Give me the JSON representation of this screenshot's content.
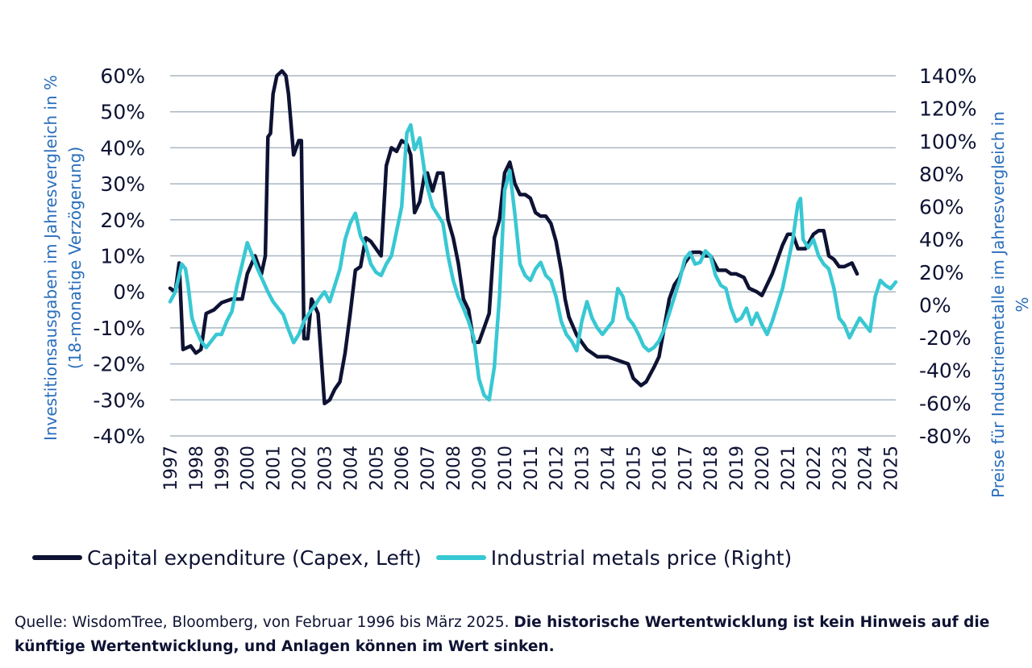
{
  "colors": {
    "capex": "#0e1233",
    "metals": "#38c8d3",
    "grid": "#a9b7c2",
    "axis_title": "#2a6ebb"
  },
  "chart_data": {
    "type": "line",
    "y_left": {
      "label_line1": "Investitionsausgaben im Jahresvergleich in %",
      "label_line2": "(18-monatige Verzögerung)",
      "min": -40,
      "max": 60,
      "step": 10,
      "ticks": [
        "60%",
        "50%",
        "40%",
        "30%",
        "20%",
        "10%",
        "0%",
        "-10%",
        "-20%",
        "-30%",
        "-40%"
      ]
    },
    "y_right": {
      "label_line1": "Preise für Industriemetalle im Jahresvergleich in",
      "label_line2": "%",
      "min": -80,
      "max": 140,
      "step": 20,
      "ticks": [
        "140%",
        "120%",
        "100%",
        "80%",
        "60%",
        "40%",
        "20%",
        "0%",
        "-20%",
        "-40%",
        "-60%",
        "-80%"
      ]
    },
    "x_range": [
      1997,
      2025.2
    ],
    "x_ticks": [
      "1997",
      "1998",
      "1999",
      "2000",
      "2001",
      "2002",
      "2003",
      "2004",
      "2005",
      "2006",
      "2007",
      "2008",
      "2009",
      "2010",
      "2011",
      "2012",
      "2013",
      "2014",
      "2015",
      "2016",
      "2017",
      "2018",
      "2019",
      "2020",
      "2021",
      "2022",
      "2023",
      "2024",
      "2025"
    ],
    "series": [
      {
        "name": "Capital expenditure (Capex, Left)",
        "axis": "left",
        "points": [
          [
            1997.0,
            1
          ],
          [
            1997.2,
            0
          ],
          [
            1997.35,
            8
          ],
          [
            1997.5,
            -16
          ],
          [
            1997.8,
            -15
          ],
          [
            1998.0,
            -17
          ],
          [
            1998.2,
            -16
          ],
          [
            1998.4,
            -6
          ],
          [
            1998.7,
            -5
          ],
          [
            1999.0,
            -3
          ],
          [
            1999.4,
            -2
          ],
          [
            1999.8,
            -2
          ],
          [
            2000.0,
            5
          ],
          [
            2000.3,
            10
          ],
          [
            2000.55,
            5
          ],
          [
            2000.7,
            10
          ],
          [
            2000.8,
            43
          ],
          [
            2000.9,
            44
          ],
          [
            2001.0,
            55
          ],
          [
            2001.15,
            60
          ],
          [
            2001.35,
            62
          ],
          [
            2001.5,
            60
          ],
          [
            2001.6,
            55
          ],
          [
            2001.8,
            38
          ],
          [
            2002.0,
            42
          ],
          [
            2002.1,
            42
          ],
          [
            2002.2,
            -13
          ],
          [
            2002.35,
            -13
          ],
          [
            2002.5,
            -2
          ],
          [
            2002.75,
            -6
          ],
          [
            2003.0,
            -31
          ],
          [
            2003.2,
            -30
          ],
          [
            2003.4,
            -27
          ],
          [
            2003.6,
            -25
          ],
          [
            2003.8,
            -17
          ],
          [
            2004.0,
            -6
          ],
          [
            2004.2,
            6
          ],
          [
            2004.4,
            7
          ],
          [
            2004.6,
            15
          ],
          [
            2004.8,
            14
          ],
          [
            2005.0,
            12
          ],
          [
            2005.2,
            10
          ],
          [
            2005.4,
            35
          ],
          [
            2005.6,
            40
          ],
          [
            2005.8,
            39
          ],
          [
            2006.0,
            42
          ],
          [
            2006.2,
            41
          ],
          [
            2006.35,
            38
          ],
          [
            2006.5,
            22
          ],
          [
            2006.7,
            25
          ],
          [
            2006.9,
            33
          ],
          [
            2007.0,
            33
          ],
          [
            2007.2,
            28
          ],
          [
            2007.4,
            33
          ],
          [
            2007.6,
            33
          ],
          [
            2007.8,
            20
          ],
          [
            2008.0,
            15
          ],
          [
            2008.2,
            8
          ],
          [
            2008.4,
            -2
          ],
          [
            2008.6,
            -5
          ],
          [
            2008.8,
            -14
          ],
          [
            2009.0,
            -14
          ],
          [
            2009.2,
            -10
          ],
          [
            2009.4,
            -6
          ],
          [
            2009.6,
            15
          ],
          [
            2009.8,
            20
          ],
          [
            2010.0,
            33
          ],
          [
            2010.2,
            36
          ],
          [
            2010.4,
            30
          ],
          [
            2010.6,
            27
          ],
          [
            2010.8,
            27
          ],
          [
            2011.0,
            26
          ],
          [
            2011.2,
            22
          ],
          [
            2011.4,
            21
          ],
          [
            2011.6,
            21
          ],
          [
            2011.8,
            19
          ],
          [
            2012.0,
            14
          ],
          [
            2012.2,
            6
          ],
          [
            2012.35,
            -2
          ],
          [
            2012.5,
            -7
          ],
          [
            2012.8,
            -12
          ],
          [
            2013.0,
            -14
          ],
          [
            2013.2,
            -16
          ],
          [
            2013.4,
            -17
          ],
          [
            2013.6,
            -18
          ],
          [
            2013.8,
            -18
          ],
          [
            2014.0,
            -18
          ],
          [
            2014.4,
            -19
          ],
          [
            2014.8,
            -20
          ],
          [
            2015.0,
            -24
          ],
          [
            2015.3,
            -26
          ],
          [
            2015.5,
            -25
          ],
          [
            2015.8,
            -21
          ],
          [
            2016.0,
            -18
          ],
          [
            2016.2,
            -10
          ],
          [
            2016.4,
            -2
          ],
          [
            2016.6,
            2
          ],
          [
            2016.8,
            4
          ],
          [
            2017.0,
            8
          ],
          [
            2017.3,
            11
          ],
          [
            2017.6,
            11
          ],
          [
            2017.8,
            10
          ],
          [
            2018.0,
            10
          ],
          [
            2018.3,
            6
          ],
          [
            2018.6,
            6
          ],
          [
            2018.8,
            5
          ],
          [
            2019.0,
            5
          ],
          [
            2019.3,
            4
          ],
          [
            2019.5,
            1
          ],
          [
            2019.8,
            0
          ],
          [
            2020.0,
            -1
          ],
          [
            2020.2,
            2
          ],
          [
            2020.4,
            5
          ],
          [
            2020.6,
            9
          ],
          [
            2020.8,
            13
          ],
          [
            2021.0,
            16
          ],
          [
            2021.2,
            16
          ],
          [
            2021.4,
            12
          ],
          [
            2021.7,
            12
          ],
          [
            2022.0,
            16
          ],
          [
            2022.2,
            17
          ],
          [
            2022.4,
            17
          ],
          [
            2022.6,
            10
          ],
          [
            2022.8,
            9
          ],
          [
            2023.0,
            7
          ],
          [
            2023.2,
            7
          ],
          [
            2023.5,
            8
          ],
          [
            2023.7,
            5
          ]
        ]
      },
      {
        "name": "Industrial metals price (Right)",
        "axis": "right",
        "points": [
          [
            1997.0,
            2
          ],
          [
            1997.2,
            8
          ],
          [
            1997.35,
            18
          ],
          [
            1997.45,
            25
          ],
          [
            1997.6,
            22
          ],
          [
            1997.7,
            12
          ],
          [
            1997.85,
            -8
          ],
          [
            1998.0,
            -15
          ],
          [
            1998.2,
            -22
          ],
          [
            1998.4,
            -26
          ],
          [
            1998.6,
            -22
          ],
          [
            1998.8,
            -18
          ],
          [
            1999.0,
            -18
          ],
          [
            1999.2,
            -10
          ],
          [
            1999.4,
            -4
          ],
          [
            1999.6,
            12
          ],
          [
            1999.8,
            25
          ],
          [
            2000.0,
            38
          ],
          [
            2000.2,
            30
          ],
          [
            2000.4,
            22
          ],
          [
            2000.6,
            15
          ],
          [
            2000.8,
            8
          ],
          [
            2001.0,
            2
          ],
          [
            2001.2,
            -2
          ],
          [
            2001.4,
            -6
          ],
          [
            2001.6,
            -15
          ],
          [
            2001.8,
            -23
          ],
          [
            2002.0,
            -18
          ],
          [
            2002.2,
            -10
          ],
          [
            2002.4,
            -5
          ],
          [
            2002.6,
            -1
          ],
          [
            2002.8,
            4
          ],
          [
            2003.0,
            8
          ],
          [
            2003.2,
            2
          ],
          [
            2003.4,
            12
          ],
          [
            2003.6,
            22
          ],
          [
            2003.8,
            40
          ],
          [
            2004.0,
            50
          ],
          [
            2004.2,
            56
          ],
          [
            2004.4,
            42
          ],
          [
            2004.6,
            36
          ],
          [
            2004.8,
            25
          ],
          [
            2005.0,
            20
          ],
          [
            2005.2,
            18
          ],
          [
            2005.4,
            25
          ],
          [
            2005.6,
            30
          ],
          [
            2005.8,
            45
          ],
          [
            2006.0,
            60
          ],
          [
            2006.2,
            105
          ],
          [
            2006.35,
            110
          ],
          [
            2006.5,
            95
          ],
          [
            2006.7,
            102
          ],
          [
            2006.9,
            80
          ],
          [
            2007.0,
            72
          ],
          [
            2007.2,
            60
          ],
          [
            2007.4,
            55
          ],
          [
            2007.6,
            50
          ],
          [
            2007.8,
            30
          ],
          [
            2008.0,
            15
          ],
          [
            2008.2,
            5
          ],
          [
            2008.4,
            -2
          ],
          [
            2008.6,
            -10
          ],
          [
            2008.8,
            -20
          ],
          [
            2009.0,
            -45
          ],
          [
            2009.2,
            -55
          ],
          [
            2009.4,
            -58
          ],
          [
            2009.6,
            -38
          ],
          [
            2009.8,
            5
          ],
          [
            2010.0,
            70
          ],
          [
            2010.2,
            82
          ],
          [
            2010.4,
            55
          ],
          [
            2010.6,
            25
          ],
          [
            2010.8,
            18
          ],
          [
            2011.0,
            15
          ],
          [
            2011.2,
            22
          ],
          [
            2011.4,
            26
          ],
          [
            2011.6,
            18
          ],
          [
            2011.8,
            15
          ],
          [
            2012.0,
            5
          ],
          [
            2012.2,
            -10
          ],
          [
            2012.4,
            -18
          ],
          [
            2012.6,
            -22
          ],
          [
            2012.8,
            -28
          ],
          [
            2013.0,
            -10
          ],
          [
            2013.2,
            2
          ],
          [
            2013.4,
            -8
          ],
          [
            2013.6,
            -14
          ],
          [
            2013.8,
            -18
          ],
          [
            2014.0,
            -14
          ],
          [
            2014.2,
            -10
          ],
          [
            2014.4,
            10
          ],
          [
            2014.6,
            5
          ],
          [
            2014.8,
            -8
          ],
          [
            2015.0,
            -12
          ],
          [
            2015.2,
            -18
          ],
          [
            2015.4,
            -25
          ],
          [
            2015.6,
            -28
          ],
          [
            2015.8,
            -26
          ],
          [
            2016.0,
            -22
          ],
          [
            2016.2,
            -15
          ],
          [
            2016.4,
            -5
          ],
          [
            2016.6,
            5
          ],
          [
            2016.8,
            15
          ],
          [
            2017.0,
            28
          ],
          [
            2017.2,
            32
          ],
          [
            2017.4,
            25
          ],
          [
            2017.6,
            26
          ],
          [
            2017.8,
            33
          ],
          [
            2018.0,
            30
          ],
          [
            2018.2,
            18
          ],
          [
            2018.4,
            12
          ],
          [
            2018.6,
            10
          ],
          [
            2018.8,
            -2
          ],
          [
            2019.0,
            -10
          ],
          [
            2019.2,
            -8
          ],
          [
            2019.4,
            -2
          ],
          [
            2019.6,
            -12
          ],
          [
            2019.8,
            -5
          ],
          [
            2020.0,
            -12
          ],
          [
            2020.2,
            -18
          ],
          [
            2020.4,
            -10
          ],
          [
            2020.6,
            0
          ],
          [
            2020.8,
            10
          ],
          [
            2021.0,
            25
          ],
          [
            2021.2,
            40
          ],
          [
            2021.4,
            62
          ],
          [
            2021.5,
            65
          ],
          [
            2021.6,
            40
          ],
          [
            2021.8,
            35
          ],
          [
            2022.0,
            40
          ],
          [
            2022.2,
            30
          ],
          [
            2022.4,
            25
          ],
          [
            2022.6,
            22
          ],
          [
            2022.8,
            10
          ],
          [
            2023.0,
            -8
          ],
          [
            2023.2,
            -12
          ],
          [
            2023.4,
            -20
          ],
          [
            2023.6,
            -14
          ],
          [
            2023.8,
            -8
          ],
          [
            2024.0,
            -12
          ],
          [
            2024.2,
            -16
          ],
          [
            2024.4,
            5
          ],
          [
            2024.6,
            15
          ],
          [
            2024.8,
            12
          ],
          [
            2025.0,
            10
          ],
          [
            2025.2,
            14
          ]
        ]
      }
    ],
    "legend_placement": "bottom"
  },
  "footnote": {
    "source": "Quelle: WisdomTree, Bloomberg, von Februar 1996 bis März 2025.",
    "disclaimer": "Die historische Wertentwicklung ist kein Hinweis auf die künftige Wertentwicklung, und Anlagen können im Wert sinken."
  }
}
